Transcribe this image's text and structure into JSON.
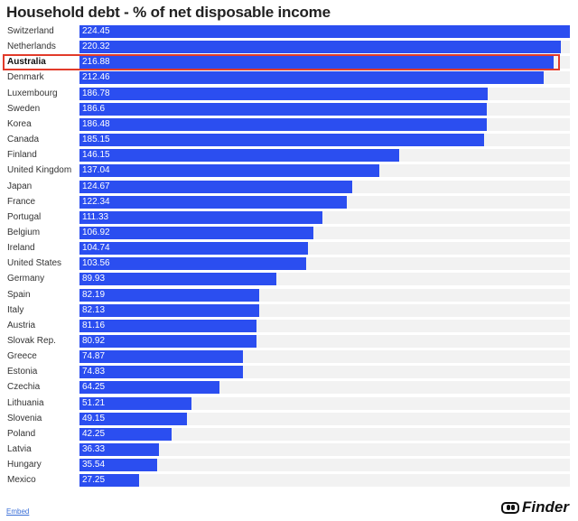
{
  "chart_data": {
    "type": "bar",
    "orientation": "horizontal",
    "title": "Household debt - % of net disposable income",
    "highlight": "Australia",
    "categories": [
      "Switzerland",
      "Netherlands",
      "Australia",
      "Denmark",
      "Luxembourg",
      "Sweden",
      "Korea",
      "Canada",
      "Finland",
      "United Kingdom",
      "Japan",
      "France",
      "Portugal",
      "Belgium",
      "Ireland",
      "United States",
      "Germany",
      "Spain",
      "Italy",
      "Austria",
      "Slovak Rep.",
      "Greece",
      "Estonia",
      "Czechia",
      "Lithuania",
      "Slovenia",
      "Poland",
      "Latvia",
      "Hungary",
      "Mexico"
    ],
    "values": [
      224.45,
      220.32,
      216.88,
      212.46,
      186.78,
      186.6,
      186.48,
      185.15,
      146.15,
      137.04,
      124.67,
      122.34,
      111.33,
      106.92,
      104.74,
      103.56,
      89.93,
      82.19,
      82.13,
      81.16,
      80.92,
      74.87,
      74.83,
      64.25,
      51.21,
      49.15,
      42.25,
      36.33,
      35.54,
      27.25
    ],
    "xlim": [
      0,
      224.45
    ],
    "colors": {
      "bar": "#2b4ef0",
      "track": "#f2f2f2",
      "highlight_border": "#e23b2a"
    }
  },
  "footer": {
    "embed": "Embed",
    "brand": "Finder"
  }
}
